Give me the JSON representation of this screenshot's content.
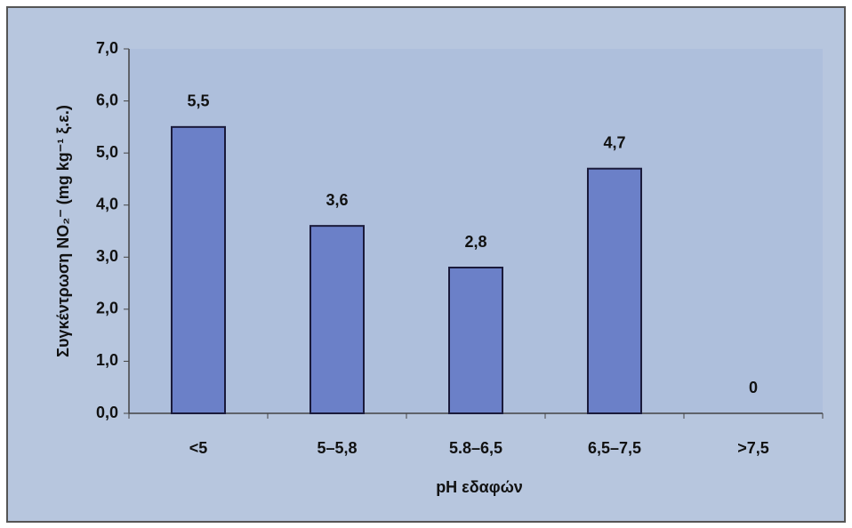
{
  "chart_data": {
    "type": "bar",
    "x_label": "pH εδαφών",
    "y_label": "Συγκέντρωση NO₂⁻ (mg kg⁻¹ ξ.ε.)",
    "categories": [
      "<5",
      "5–5,8",
      "5.8–6,5",
      "6,5–7,5",
      ">7,5"
    ],
    "values": [
      5.5,
      3.6,
      2.8,
      4.7,
      0
    ],
    "value_labels": [
      "5,5",
      "3,6",
      "2,8",
      "4,7",
      "0"
    ],
    "color": "#6b80c8",
    "ylim": [
      0,
      7
    ],
    "yticks": [
      {
        "value": 0,
        "label": "0,0"
      },
      {
        "value": 1,
        "label": "1,0"
      },
      {
        "value": 2,
        "label": "2,0"
      },
      {
        "value": 3,
        "label": "3,0"
      },
      {
        "value": 4,
        "label": "4,0"
      },
      {
        "value": 5,
        "label": "5,0"
      },
      {
        "value": 6,
        "label": "6,0"
      },
      {
        "value": 7,
        "label": "7,0"
      }
    ],
    "grid": false
  }
}
